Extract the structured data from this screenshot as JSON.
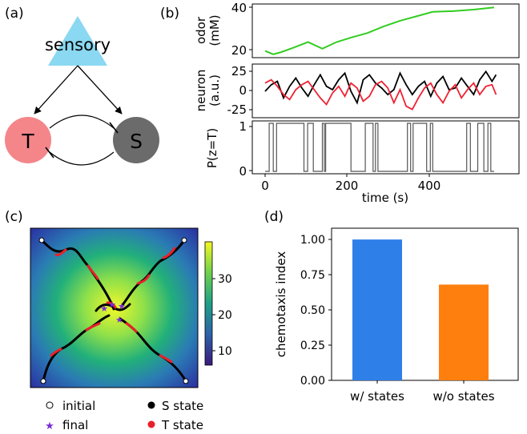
{
  "panels": {
    "a": {
      "label": "(a)",
      "sensory_label": "sensory",
      "t_label": "T",
      "s_label": "S",
      "colors": {
        "sensory": "#8ad8f2",
        "t": "#f4868a",
        "s": "#6b6b6b"
      }
    },
    "b": {
      "label": "(b)",
      "xlabel": "time (s)",
      "xticks": [
        "0",
        "200",
        "400"
      ],
      "odor": {
        "ylabel": "odor",
        "yunit": "(mM)",
        "yticks": [
          "20",
          "40"
        ],
        "color": "#33cc22"
      },
      "neuron": {
        "ylabel": "neuron",
        "yunit": "(a.u.)",
        "yticks": [
          "25",
          "0",
          "-25"
        ],
        "black": "#000000",
        "red": "#ee2233"
      },
      "state": {
        "ylabel": "P(z=T)",
        "yticks": [
          "1",
          "0"
        ],
        "color": "#555555"
      }
    },
    "c": {
      "label": "(c)",
      "colorbar_ticks": [
        "30",
        "20",
        "10"
      ],
      "legend": {
        "initial": "initial",
        "final": "final",
        "s_state": "S state",
        "t_state": "T state"
      },
      "colors": {
        "s_state": "#000000",
        "t_state": "#e8202a",
        "final": "#7a2bd6"
      }
    },
    "d": {
      "label": "(d)",
      "ylabel": "chemotaxis index",
      "yticks": [
        "1.00",
        "0.75",
        "0.50",
        "0.25",
        "0.00"
      ]
    }
  },
  "chart_data": [
    {
      "type": "line",
      "panel": "b-odor",
      "title": "",
      "xlabel": "time (s)",
      "ylabel": "odor (mM)",
      "xlim": [
        0,
        570
      ],
      "ylim": [
        17,
        41
      ],
      "series": [
        {
          "name": "odor",
          "x": [
            0,
            20,
            40,
            70,
            105,
            140,
            175,
            210,
            250,
            290,
            330,
            370,
            410,
            460,
            510,
            560
          ],
          "values": [
            20,
            18.5,
            19.5,
            21.5,
            24,
            21,
            24,
            26,
            28,
            31,
            33.5,
            35.5,
            37.5,
            37.8,
            38.5,
            39.5
          ]
        }
      ]
    },
    {
      "type": "line",
      "panel": "b-neuron",
      "xlabel": "time (s)",
      "ylabel": "neuron (a.u.)",
      "xlim": [
        0,
        570
      ],
      "ylim": [
        -30,
        35
      ],
      "series": [
        {
          "name": "S neuron",
          "x": [
            0,
            15,
            30,
            45,
            60,
            75,
            90,
            105,
            120,
            135,
            150,
            165,
            180,
            195,
            210,
            225,
            240,
            255,
            270,
            285,
            300,
            315,
            330,
            345,
            360,
            375,
            390,
            405,
            420,
            435,
            450,
            465,
            480,
            495,
            510,
            525,
            540,
            555,
            565
          ],
          "values": [
            2,
            10,
            14,
            -6,
            8,
            18,
            6,
            -4,
            10,
            22,
            8,
            4,
            16,
            24,
            2,
            -12,
            16,
            22,
            12,
            6,
            -2,
            4,
            24,
            10,
            -2,
            8,
            14,
            -4,
            12,
            20,
            4,
            6,
            18,
            8,
            -2,
            16,
            26,
            14,
            22
          ]
        },
        {
          "name": "T neuron",
          "x": [
            0,
            15,
            30,
            45,
            60,
            75,
            90,
            105,
            120,
            135,
            150,
            165,
            180,
            195,
            210,
            225,
            240,
            255,
            270,
            285,
            300,
            315,
            330,
            345,
            360,
            375,
            390,
            405,
            420,
            435,
            450,
            465,
            480,
            495,
            510,
            525,
            540,
            555,
            565
          ],
          "values": [
            12,
            16,
            8,
            -2,
            -8,
            4,
            10,
            14,
            4,
            -6,
            -14,
            0,
            8,
            -4,
            12,
            6,
            -10,
            -4,
            10,
            14,
            6,
            -12,
            4,
            -16,
            -20,
            -6,
            6,
            12,
            -2,
            -12,
            2,
            10,
            -6,
            4,
            12,
            -2,
            8,
            10,
            -2
          ]
        }
      ]
    },
    {
      "type": "line",
      "panel": "b-state",
      "xlabel": "time (s)",
      "ylabel": "P(z=T)",
      "xlim": [
        0,
        570
      ],
      "ylim": [
        -0.05,
        1.05
      ],
      "series": [
        {
          "name": "P(z=T)",
          "x": [
            0,
            10,
            10,
            20,
            20,
            28,
            28,
            95,
            95,
            104,
            104,
            118,
            118,
            140,
            140,
            145,
            145,
            148,
            148,
            210,
            210,
            245,
            245,
            264,
            264,
            270,
            270,
            276,
            276,
            348,
            348,
            356,
            356,
            362,
            362,
            395,
            395,
            404,
            404,
            410,
            410,
            493,
            493,
            502,
            502,
            520,
            520,
            535,
            535,
            545,
            545,
            552,
            552,
            560
          ],
          "values": [
            0,
            0,
            1,
            1,
            0,
            0,
            1,
            1,
            0,
            0,
            1,
            1,
            0,
            0,
            1,
            1,
            0,
            0,
            1,
            1,
            0,
            0,
            1,
            1,
            0,
            0,
            1,
            1,
            0,
            0,
            1,
            1,
            0,
            0,
            1,
            1,
            0,
            0,
            1,
            1,
            0,
            0,
            1,
            1,
            0,
            0,
            1,
            1,
            0,
            0,
            1,
            1,
            0,
            0
          ]
        }
      ]
    },
    {
      "type": "bar",
      "panel": "d",
      "title": "",
      "xlabel": "",
      "ylabel": "chemotaxis index",
      "categories": [
        "w/ states",
        "w/o states"
      ],
      "values": [
        1.0,
        0.68
      ],
      "colors": [
        "#2f7fe8",
        "#ff7f0e"
      ],
      "ylim": [
        0,
        1.08
      ]
    }
  ]
}
